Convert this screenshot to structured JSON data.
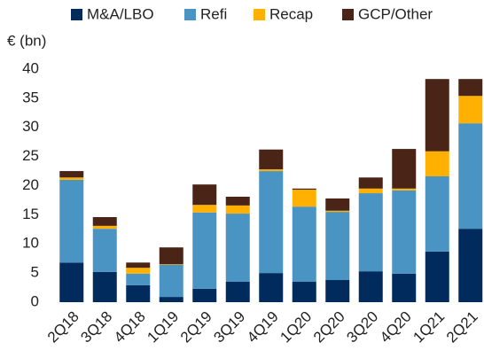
{
  "chart_data": {
    "type": "stacked_bar",
    "y_label": "€ (bn)",
    "categories": [
      "2Q18",
      "3Q18",
      "4Q18",
      "1Q19",
      "2Q19",
      "3Q19",
      "4Q19",
      "1Q20",
      "2Q20",
      "3Q20",
      "4Q20",
      "1Q21",
      "2Q21"
    ],
    "series": [
      {
        "name": "M&A/LBO",
        "color": "#002b5c",
        "values": [
          6.8,
          5.2,
          2.9,
          0.9,
          2.3,
          3.5,
          5.0,
          3.5,
          3.8,
          5.3,
          4.9,
          8.7,
          12.6
        ]
      },
      {
        "name": "Refi",
        "color": "#4a94c4",
        "values": [
          14.2,
          7.4,
          2.0,
          5.5,
          13.1,
          11.7,
          17.5,
          12.9,
          11.7,
          13.4,
          14.3,
          12.9,
          18.1
        ]
      },
      {
        "name": "Recap",
        "color": "#ffb000",
        "values": [
          0.4,
          0.5,
          1.0,
          0.1,
          1.3,
          1.4,
          0.3,
          2.9,
          0.2,
          0.8,
          0.3,
          4.3,
          4.7
        ]
      },
      {
        "name": "GCP/Other",
        "color": "#4a2416",
        "values": [
          1.1,
          1.5,
          0.9,
          2.9,
          3.5,
          1.5,
          3.4,
          0.2,
          2.1,
          1.9,
          6.8,
          12.4,
          2.9
        ]
      }
    ],
    "ylim": [
      0,
      40
    ],
    "yticks": [
      0,
      5,
      10,
      15,
      20,
      25,
      30,
      35,
      40
    ],
    "grid": false,
    "legend": "top"
  }
}
